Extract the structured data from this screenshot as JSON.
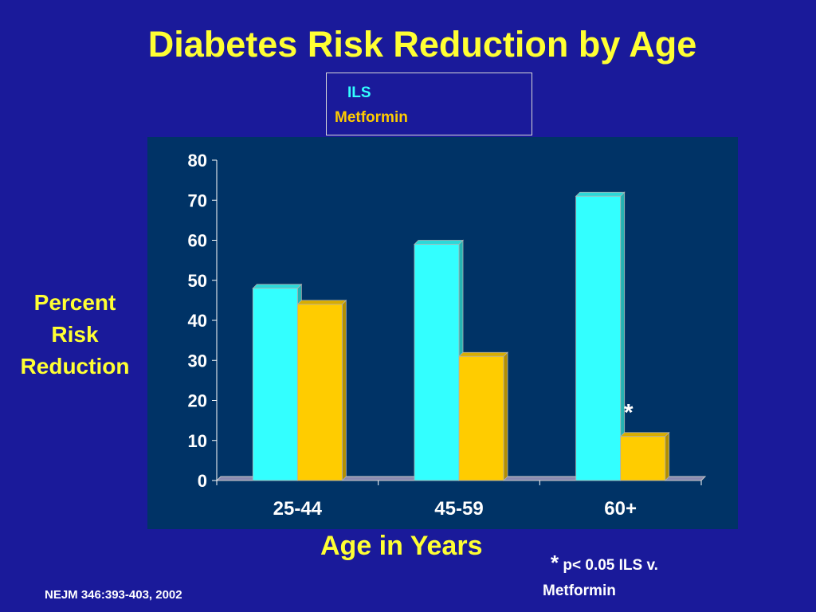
{
  "chart_data": {
    "type": "bar",
    "title": "Diabetes Risk Reduction by Age",
    "xlabel": "Age in Years",
    "ylabel": "Percent Risk Reduction",
    "categories": [
      "25-44",
      "45-59",
      "60+"
    ],
    "series": [
      {
        "name": "ILS",
        "values": [
          48,
          59,
          71
        ],
        "color": "#33ffff"
      },
      {
        "name": "Metformin",
        "values": [
          44,
          31,
          11
        ],
        "color": "#ffcc00"
      }
    ],
    "ylim": [
      0,
      80
    ],
    "yticks": [
      "0",
      "10",
      "20",
      "30",
      "40",
      "50",
      "60",
      "70",
      "80"
    ],
    "grid": false,
    "legend_position": "top-right",
    "annotations": [
      {
        "text": "*",
        "category": "60+",
        "series": "Metformin"
      }
    ]
  },
  "footnote": {
    "star": "*",
    "text": "p< 0.05 ILS v.",
    "text2": "Metformin"
  },
  "citation": "NEJM 346:393-403, 2002",
  "ylabel_lines": [
    "Percent",
    "Risk",
    "Reduction"
  ]
}
